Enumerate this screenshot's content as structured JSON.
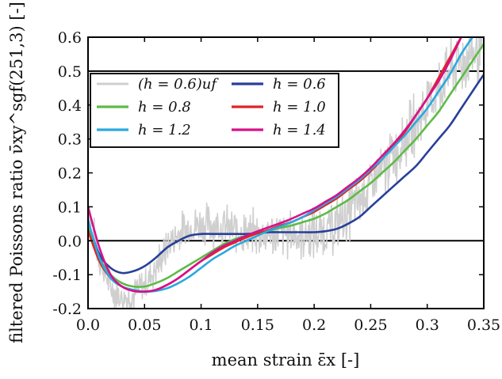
{
  "chart_data": {
    "type": "line",
    "title": "",
    "xlabel": "mean strain ε̄x [-]",
    "ylabel": "filtered Poissons ratio ν̄xy^sgf(251,3) [-]",
    "xlim": [
      0.0,
      0.35
    ],
    "ylim": [
      -0.2,
      0.6
    ],
    "xticks": [
      "0.0",
      "0.05",
      "0.1",
      "0.15",
      "0.2",
      "0.25",
      "0.3",
      "0.35"
    ],
    "xtick_values": [
      0.0,
      0.05,
      0.1,
      0.15,
      0.2,
      0.25,
      0.3,
      0.35
    ],
    "yticks": [
      "-0.2",
      "-0.1",
      "0.0",
      "0.1",
      "0.2",
      "0.3",
      "0.4",
      "0.5",
      "0.6"
    ],
    "ytick_values": [
      -0.2,
      -0.1,
      0.0,
      0.1,
      0.2,
      0.3,
      0.4,
      0.5,
      0.6
    ],
    "hlines": [
      0.0,
      0.5
    ],
    "grid": false,
    "legend_position": "top-left",
    "series": [
      {
        "name": "(h = 0.6)uf",
        "color": "#cfcfcf",
        "style": "noisy",
        "x": [
          0.0,
          0.01,
          0.02,
          0.03,
          0.04,
          0.05,
          0.06,
          0.07,
          0.08,
          0.09,
          0.1,
          0.11,
          0.12,
          0.13,
          0.14,
          0.15,
          0.16,
          0.17,
          0.18,
          0.19,
          0.2,
          0.21,
          0.22,
          0.23,
          0.24,
          0.25,
          0.26,
          0.27,
          0.28,
          0.29,
          0.3,
          0.31,
          0.32,
          0.33,
          0.34,
          0.35
        ],
        "y": [
          0.1,
          -0.05,
          -0.14,
          -0.17,
          -0.16,
          -0.13,
          -0.08,
          -0.02,
          0.02,
          0.04,
          0.05,
          0.05,
          0.04,
          0.03,
          0.02,
          0.02,
          0.02,
          0.02,
          0.02,
          0.02,
          0.02,
          0.03,
          0.05,
          0.08,
          0.12,
          0.16,
          0.2,
          0.25,
          0.3,
          0.35,
          0.4,
          0.45,
          0.5,
          0.53,
          0.55,
          0.57
        ]
      },
      {
        "name": "h = 0.6",
        "color": "#27409a",
        "x": [
          0.0,
          0.01,
          0.02,
          0.03,
          0.04,
          0.05,
          0.06,
          0.07,
          0.08,
          0.09,
          0.1,
          0.11,
          0.12,
          0.13,
          0.14,
          0.15,
          0.16,
          0.17,
          0.18,
          0.19,
          0.2,
          0.21,
          0.22,
          0.23,
          0.24,
          0.25,
          0.26,
          0.27,
          0.28,
          0.29,
          0.3,
          0.31,
          0.32,
          0.33,
          0.34,
          0.35
        ],
        "y": [
          0.05,
          -0.04,
          -0.08,
          -0.095,
          -0.09,
          -0.075,
          -0.05,
          -0.02,
          0.0,
          0.015,
          0.02,
          0.02,
          0.02,
          0.02,
          0.02,
          0.022,
          0.025,
          0.025,
          0.025,
          0.025,
          0.025,
          0.028,
          0.035,
          0.05,
          0.07,
          0.1,
          0.13,
          0.16,
          0.19,
          0.22,
          0.26,
          0.3,
          0.34,
          0.39,
          0.44,
          0.49
        ]
      },
      {
        "name": "h = 0.8",
        "color": "#5dbb46",
        "x": [
          0.0,
          0.01,
          0.02,
          0.03,
          0.04,
          0.05,
          0.06,
          0.07,
          0.08,
          0.09,
          0.1,
          0.11,
          0.12,
          0.13,
          0.14,
          0.15,
          0.16,
          0.17,
          0.18,
          0.19,
          0.2,
          0.21,
          0.22,
          0.23,
          0.24,
          0.25,
          0.26,
          0.27,
          0.28,
          0.29,
          0.3,
          0.31,
          0.32,
          0.33,
          0.34,
          0.35
        ],
        "y": [
          0.04,
          -0.05,
          -0.1,
          -0.125,
          -0.135,
          -0.135,
          -0.125,
          -0.11,
          -0.09,
          -0.07,
          -0.05,
          -0.03,
          -0.01,
          0.005,
          0.015,
          0.025,
          0.03,
          0.038,
          0.045,
          0.055,
          0.065,
          0.08,
          0.1,
          0.12,
          0.145,
          0.17,
          0.2,
          0.23,
          0.265,
          0.3,
          0.34,
          0.38,
          0.43,
          0.48,
          0.53,
          0.58
        ]
      },
      {
        "name": "h = 1.0",
        "color": "#e02424",
        "x": [
          0.0,
          0.01,
          0.02,
          0.03,
          0.04,
          0.05,
          0.06,
          0.07,
          0.08,
          0.09,
          0.1,
          0.11,
          0.12,
          0.13,
          0.14,
          0.15,
          0.16,
          0.17,
          0.18,
          0.19,
          0.2,
          0.21,
          0.22,
          0.23,
          0.24,
          0.25,
          0.26,
          0.27,
          0.28,
          0.29,
          0.3,
          0.31,
          0.32,
          0.33
        ],
        "y": [
          0.03,
          -0.06,
          -0.11,
          -0.135,
          -0.145,
          -0.15,
          -0.145,
          -0.13,
          -0.11,
          -0.085,
          -0.06,
          -0.04,
          -0.02,
          -0.005,
          0.01,
          0.022,
          0.032,
          0.045,
          0.055,
          0.07,
          0.085,
          0.105,
          0.125,
          0.15,
          0.175,
          0.205,
          0.24,
          0.28,
          0.32,
          0.37,
          0.42,
          0.48,
          0.54,
          0.6
        ]
      },
      {
        "name": "h = 1.2",
        "color": "#2aa9e0",
        "x": [
          0.0,
          0.01,
          0.02,
          0.03,
          0.04,
          0.05,
          0.06,
          0.07,
          0.08,
          0.09,
          0.1,
          0.11,
          0.12,
          0.13,
          0.14,
          0.15,
          0.16,
          0.17,
          0.18,
          0.19,
          0.2,
          0.21,
          0.22,
          0.23,
          0.24,
          0.25,
          0.26,
          0.27,
          0.28,
          0.29,
          0.3,
          0.31,
          0.32,
          0.33,
          0.34
        ],
        "y": [
          0.06,
          -0.05,
          -0.11,
          -0.135,
          -0.145,
          -0.15,
          -0.148,
          -0.14,
          -0.125,
          -0.105,
          -0.08,
          -0.055,
          -0.035,
          -0.015,
          0.0,
          0.015,
          0.03,
          0.042,
          0.055,
          0.07,
          0.09,
          0.11,
          0.13,
          0.155,
          0.18,
          0.21,
          0.24,
          0.275,
          0.31,
          0.35,
          0.39,
          0.44,
          0.49,
          0.55,
          0.6
        ]
      },
      {
        "name": "h = 1.4",
        "color": "#d6118a",
        "x": [
          0.0,
          0.01,
          0.02,
          0.03,
          0.04,
          0.05,
          0.06,
          0.07,
          0.08,
          0.09,
          0.1,
          0.11,
          0.12,
          0.13,
          0.14,
          0.15,
          0.16,
          0.17,
          0.18,
          0.19,
          0.2,
          0.21,
          0.22,
          0.23,
          0.24,
          0.25,
          0.26,
          0.27,
          0.28,
          0.29,
          0.3,
          0.31,
          0.32,
          0.33
        ],
        "y": [
          0.1,
          -0.02,
          -0.1,
          -0.135,
          -0.148,
          -0.15,
          -0.145,
          -0.13,
          -0.11,
          -0.085,
          -0.06,
          -0.035,
          -0.015,
          0.0,
          0.015,
          0.028,
          0.04,
          0.052,
          0.065,
          0.08,
          0.095,
          0.115,
          0.135,
          0.16,
          0.185,
          0.215,
          0.25,
          0.285,
          0.325,
          0.37,
          0.42,
          0.47,
          0.53,
          0.6
        ]
      }
    ]
  }
}
